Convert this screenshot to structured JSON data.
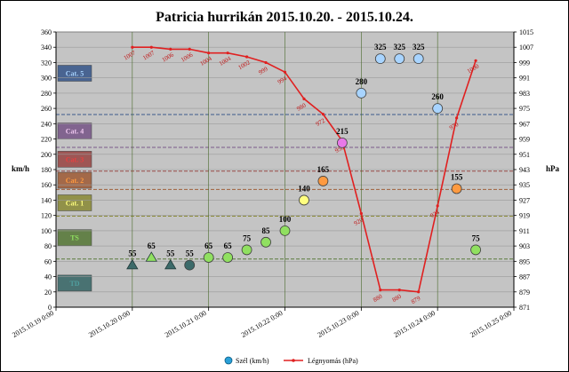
{
  "chart_data": {
    "type": "scatter",
    "title": "Patricia hurrikán 2015.10.20. - 2015.10.24.",
    "ylabel_left": "km/h",
    "ylabel_right": "hPa",
    "ylim_left": [
      0,
      360
    ],
    "yticks_left": [
      0,
      20,
      40,
      60,
      80,
      100,
      120,
      140,
      160,
      180,
      200,
      220,
      240,
      260,
      280,
      300,
      320,
      340,
      360
    ],
    "ylim_right": [
      871,
      1015
    ],
    "yticks_right": [
      871,
      879,
      887,
      895,
      903,
      911,
      919,
      927,
      935,
      943,
      951,
      959,
      967,
      975,
      983,
      991,
      999,
      1007,
      1015
    ],
    "xlim": [
      0,
      6
    ],
    "xticks": [
      0,
      1,
      2,
      3,
      4,
      5,
      6
    ],
    "xtick_labels": [
      "2015.10.19 0:00",
      "2015.10.20 0:00",
      "2015.10.21 0:00",
      "2015.10.22 0:00",
      "2015.10.23 0:00",
      "2015.10.24 0:00",
      "2015.10.25 0:00"
    ],
    "grid": true,
    "legend_position": "bottom",
    "categories": [
      {
        "label": "Cat. 5",
        "from": 252,
        "to": 360,
        "color": "#3c5a8c",
        "text_color": "#a8d4ff"
      },
      {
        "label": "Cat. 4",
        "from": 209,
        "to": 252,
        "color": "#7a5a8a",
        "text_color": "#f0c8f0"
      },
      {
        "label": "Cat. 3",
        "from": 178,
        "to": 209,
        "color": "#9a4b48",
        "text_color": "#e84040"
      },
      {
        "label": "Cat. 2",
        "from": 154,
        "to": 178,
        "color": "#a0603c",
        "text_color": "#ff9a40"
      },
      {
        "label": "Cat. 1",
        "from": 119,
        "to": 154,
        "color": "#8c8c3c",
        "text_color": "#ffff80"
      },
      {
        "label": "TS",
        "from": 63,
        "to": 119,
        "color": "#5a7a3c",
        "text_color": "#90e060"
      },
      {
        "label": "TD",
        "from": 0,
        "to": 63,
        "color": "#3c6a6a",
        "text_color": "#50a0a0"
      }
    ],
    "series": [
      {
        "name": "Szél (km/h)",
        "axis": "left",
        "x": [
          1.0,
          1.25,
          1.5,
          1.75,
          2.0,
          2.25,
          2.5,
          2.75,
          3.0,
          3.25,
          3.5,
          3.75,
          4.0,
          4.25,
          4.5,
          4.75,
          5.0,
          5.25,
          5.5
        ],
        "values": [
          55,
          65,
          55,
          55,
          65,
          65,
          75,
          85,
          100,
          140,
          165,
          215,
          280,
          325,
          325,
          325,
          260,
          155,
          75
        ],
        "labels": [
          "55",
          "65",
          "55",
          "55",
          "65",
          "65",
          "75",
          "85",
          "100",
          "140",
          "165",
          "215",
          "280",
          "325",
          "325",
          "325",
          "260",
          "155",
          "75"
        ],
        "markers": [
          "triangle",
          "triangle",
          "triangle",
          "circle",
          "circle",
          "circle",
          "circle",
          "circle",
          "circle",
          "circle",
          "circle",
          "circle",
          "circle",
          "circle",
          "circle",
          "circle",
          "circle",
          "circle",
          "circle"
        ],
        "colors": [
          "#3c6a6a",
          "#90e060",
          "#3c6a6a",
          "#3c6a6a",
          "#90e060",
          "#90e060",
          "#90e060",
          "#90e060",
          "#90e060",
          "#ffff80",
          "#ff9a40",
          "#e878e8",
          "#a8d4ff",
          "#a8d4ff",
          "#a8d4ff",
          "#a8d4ff",
          "#a8d4ff",
          "#ff9a40",
          "#90e060"
        ]
      },
      {
        "name": "Légnyomás (hPa)",
        "axis": "right",
        "color": "#e02020",
        "x": [
          1.0,
          1.25,
          1.5,
          1.75,
          2.0,
          2.25,
          2.5,
          2.75,
          3.0,
          3.25,
          3.5,
          3.75,
          4.0,
          4.25,
          4.5,
          4.75,
          5.0,
          5.25,
          5.5
        ],
        "values": [
          1007,
          1007,
          1006,
          1006,
          1004,
          1004,
          1002,
          999,
          994,
          980,
          972,
          958,
          920,
          880,
          880,
          879,
          924,
          970,
          1000
        ],
        "labels": [
          "1007",
          "1007",
          "1006",
          "1006",
          "1004",
          "1004",
          "1002",
          "999",
          "994",
          "980",
          "972",
          "958",
          "920",
          "880",
          "880",
          "879",
          "924",
          "970",
          "1000"
        ]
      }
    ]
  }
}
